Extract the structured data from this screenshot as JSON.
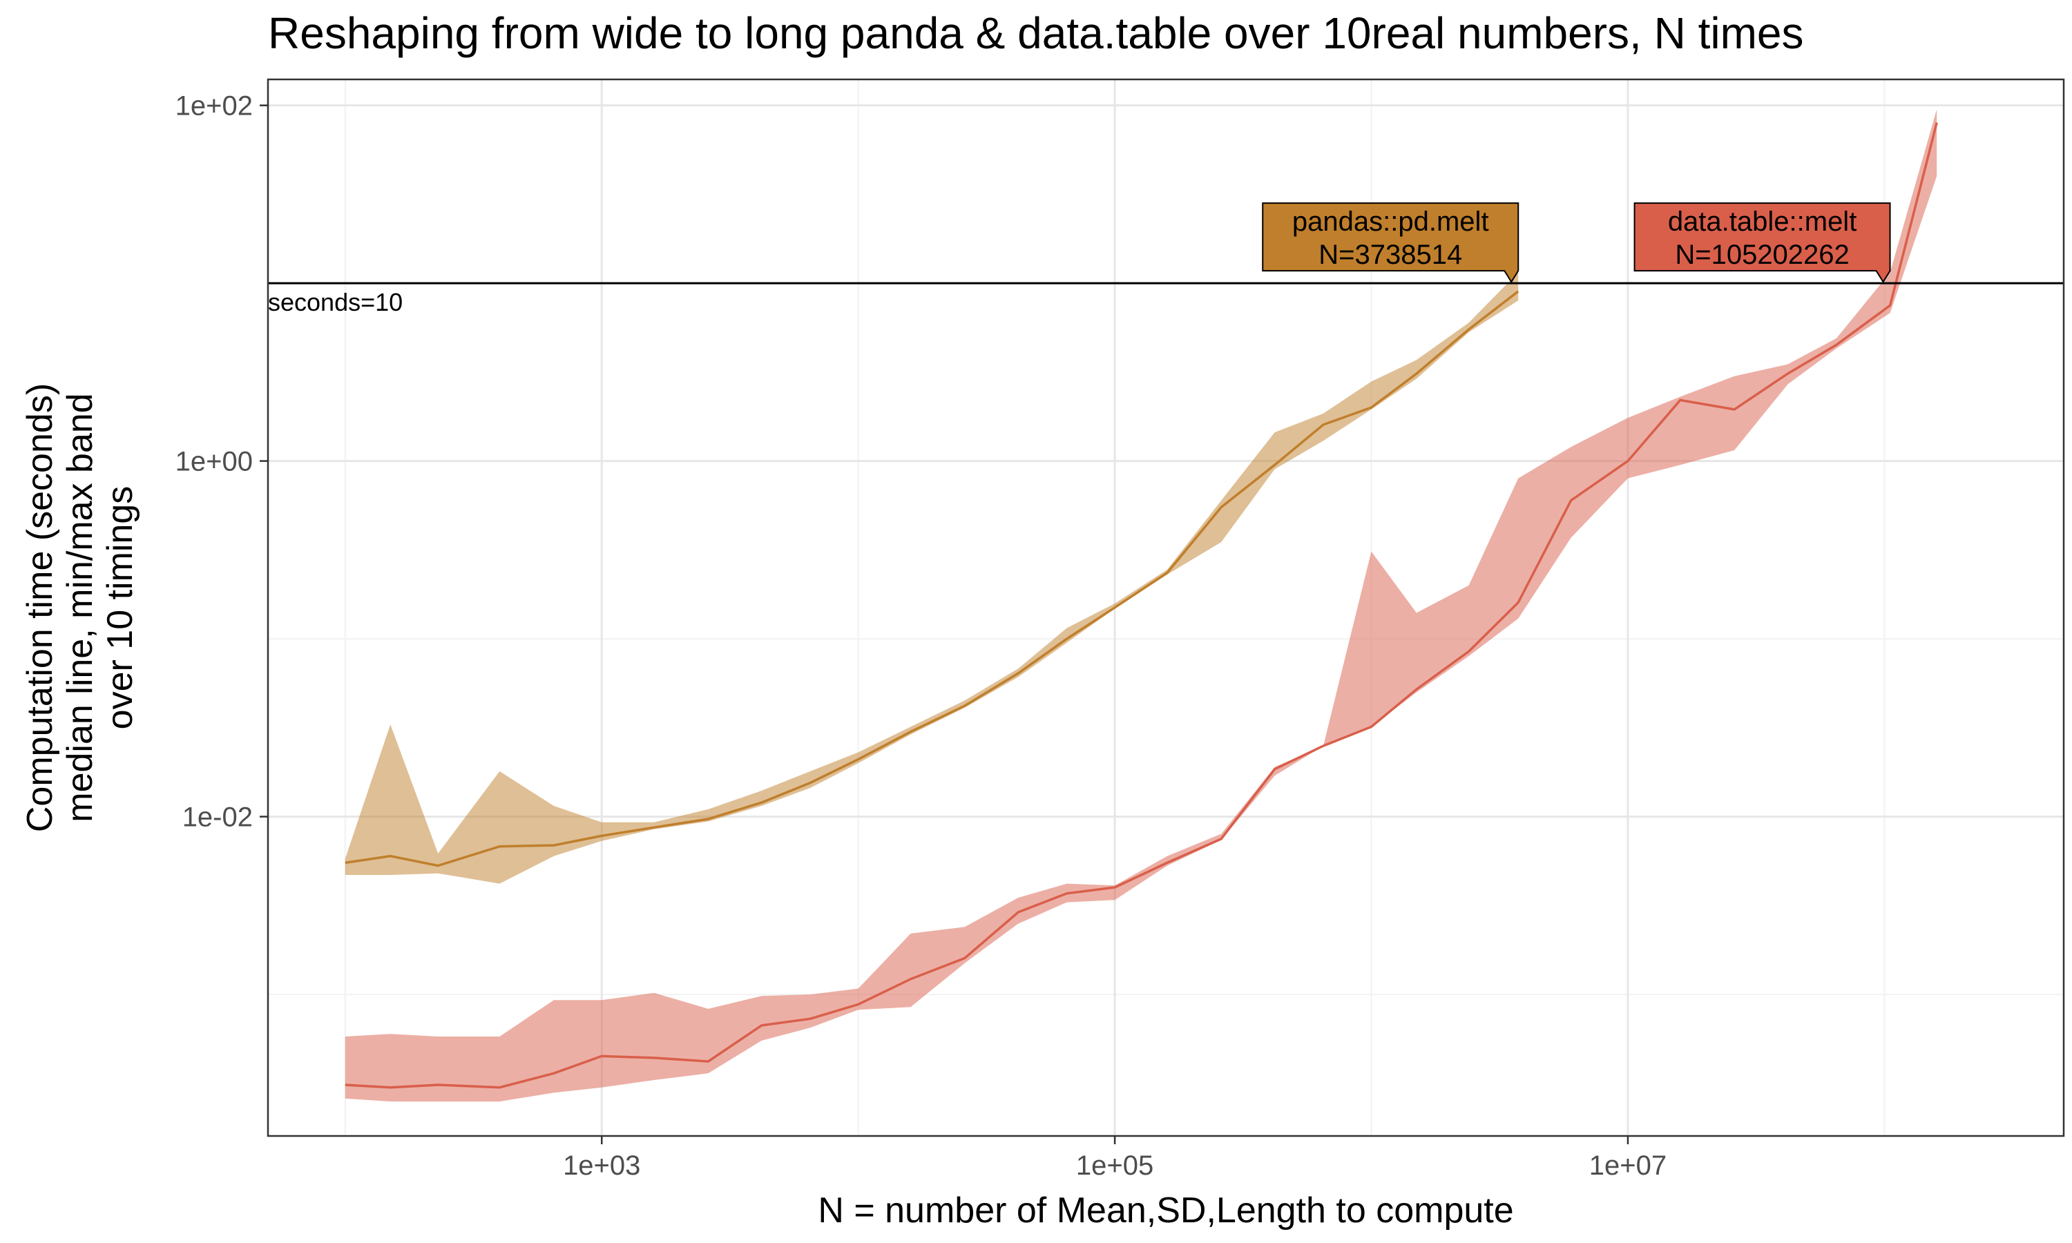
{
  "chart_data": {
    "type": "line",
    "title": "Reshaping from wide to long panda & data.table over 10real numbers, N times",
    "xlabel": "N = number of Mean,SD,Length to compute",
    "ylabel_lines": [
      "Computation time (seconds)",
      "median line, min/max band",
      "over 10 timings"
    ],
    "x_scale": "log10",
    "y_scale": "log10",
    "xlim": [
      50,
      500000000
    ],
    "ylim": [
      0.00016,
      140
    ],
    "x_ticks": [
      {
        "value": 1000,
        "label": "1e+03"
      },
      {
        "value": 100000,
        "label": "1e+05"
      },
      {
        "value": 10000000,
        "label": "1e+07"
      }
    ],
    "y_ticks": [
      {
        "value": 0.01,
        "label": "1e-02"
      },
      {
        "value": 1,
        "label": "1e+00"
      },
      {
        "value": 100,
        "label": "1e+02"
      }
    ],
    "grid": true,
    "reference_line": {
      "y": 10,
      "label": "seconds=10"
    },
    "series": [
      {
        "name": "pandas::pd.melt",
        "color": "#C07F2C",
        "band_color": "#C07F2C",
        "label_text": "N=3738514",
        "label_x": 3738514,
        "points": [
          {
            "x": 100,
            "median": 0.0055,
            "min": 0.0047,
            "max": 0.0058
          },
          {
            "x": 150,
            "median": 0.006,
            "min": 0.0047,
            "max": 0.033
          },
          {
            "x": 230,
            "median": 0.0053,
            "min": 0.0048,
            "max": 0.0062
          },
          {
            "x": 400,
            "median": 0.0068,
            "min": 0.0042,
            "max": 0.018
          },
          {
            "x": 650,
            "median": 0.0069,
            "min": 0.006,
            "max": 0.0115
          },
          {
            "x": 1000,
            "median": 0.0078,
            "min": 0.0073,
            "max": 0.0093
          },
          {
            "x": 1600,
            "median": 0.0087,
            "min": 0.0085,
            "max": 0.0093
          },
          {
            "x": 2600,
            "median": 0.0097,
            "min": 0.0094,
            "max": 0.011
          },
          {
            "x": 4200,
            "median": 0.012,
            "min": 0.0115,
            "max": 0.014
          },
          {
            "x": 6500,
            "median": 0.0155,
            "min": 0.0145,
            "max": 0.018
          },
          {
            "x": 10000,
            "median": 0.021,
            "min": 0.02,
            "max": 0.023
          },
          {
            "x": 16000,
            "median": 0.03,
            "min": 0.029,
            "max": 0.032
          },
          {
            "x": 26000,
            "median": 0.042,
            "min": 0.041,
            "max": 0.045
          },
          {
            "x": 42000,
            "median": 0.064,
            "min": 0.061,
            "max": 0.068
          },
          {
            "x": 65000,
            "median": 0.1,
            "min": 0.095,
            "max": 0.115
          },
          {
            "x": 100000,
            "median": 0.15,
            "min": 0.148,
            "max": 0.158
          },
          {
            "x": 160000,
            "median": 0.235,
            "min": 0.23,
            "max": 0.245
          },
          {
            "x": 260000,
            "median": 0.55,
            "min": 0.35,
            "max": 0.6
          },
          {
            "x": 420000,
            "median": 0.95,
            "min": 0.9,
            "max": 1.45
          },
          {
            "x": 650000,
            "median": 1.6,
            "min": 1.3,
            "max": 1.85
          },
          {
            "x": 1000000,
            "median": 2.0,
            "min": 1.95,
            "max": 2.8
          },
          {
            "x": 1500000,
            "median": 3.1,
            "min": 2.9,
            "max": 3.7
          },
          {
            "x": 2400000,
            "median": 5.5,
            "min": 5.3,
            "max": 6.0
          },
          {
            "x": 3738514,
            "median": 9.0,
            "min": 8.0,
            "max": 11.5
          }
        ]
      },
      {
        "name": "data.table::melt",
        "color": "#D95F4B",
        "band_color": "#D95F4B",
        "label_text": "N=105202262",
        "label_x": 105202262,
        "points": [
          {
            "x": 100,
            "median": 0.00031,
            "min": 0.00026,
            "max": 0.00058
          },
          {
            "x": 150,
            "median": 0.0003,
            "min": 0.00025,
            "max": 0.0006
          },
          {
            "x": 230,
            "median": 0.00031,
            "min": 0.00025,
            "max": 0.00058
          },
          {
            "x": 400,
            "median": 0.0003,
            "min": 0.00025,
            "max": 0.00058
          },
          {
            "x": 650,
            "median": 0.00036,
            "min": 0.00028,
            "max": 0.00093
          },
          {
            "x": 1000,
            "median": 0.00045,
            "min": 0.0003,
            "max": 0.00093
          },
          {
            "x": 1600,
            "median": 0.00044,
            "min": 0.00033,
            "max": 0.00102
          },
          {
            "x": 2600,
            "median": 0.00042,
            "min": 0.00036,
            "max": 0.00083
          },
          {
            "x": 4200,
            "median": 0.00067,
            "min": 0.00055,
            "max": 0.00098
          },
          {
            "x": 6500,
            "median": 0.00073,
            "min": 0.00065,
            "max": 0.001
          },
          {
            "x": 10000,
            "median": 0.00088,
            "min": 0.00082,
            "max": 0.00108
          },
          {
            "x": 16000,
            "median": 0.00122,
            "min": 0.00085,
            "max": 0.0022
          },
          {
            "x": 26000,
            "median": 0.0016,
            "min": 0.0015,
            "max": 0.0024
          },
          {
            "x": 42000,
            "median": 0.0029,
            "min": 0.0025,
            "max": 0.0035
          },
          {
            "x": 65000,
            "median": 0.0037,
            "min": 0.0033,
            "max": 0.0042
          },
          {
            "x": 100000,
            "median": 0.004,
            "min": 0.0034,
            "max": 0.0041
          },
          {
            "x": 160000,
            "median": 0.0055,
            "min": 0.0053,
            "max": 0.006
          },
          {
            "x": 260000,
            "median": 0.0075,
            "min": 0.0074,
            "max": 0.008
          },
          {
            "x": 420000,
            "median": 0.0185,
            "min": 0.017,
            "max": 0.019
          },
          {
            "x": 650000,
            "median": 0.025,
            "min": 0.025,
            "max": 0.025
          },
          {
            "x": 1000000,
            "median": 0.032,
            "min": 0.032,
            "max": 0.31
          },
          {
            "x": 1500000,
            "median": 0.052,
            "min": 0.05,
            "max": 0.14
          },
          {
            "x": 2400000,
            "median": 0.085,
            "min": 0.08,
            "max": 0.2
          },
          {
            "x": 3738514,
            "median": 0.16,
            "min": 0.13,
            "max": 0.8
          },
          {
            "x": 6000000,
            "median": 0.6,
            "min": 0.37,
            "max": 1.2
          },
          {
            "x": 10000000,
            "median": 1.0,
            "min": 0.8,
            "max": 1.75
          },
          {
            "x": 16000000,
            "median": 2.2,
            "min": 0.95,
            "max": 2.3
          },
          {
            "x": 26000000,
            "median": 1.95,
            "min": 1.15,
            "max": 3.0
          },
          {
            "x": 42000000,
            "median": 3.1,
            "min": 2.7,
            "max": 3.5
          },
          {
            "x": 65000000,
            "median": 4.5,
            "min": 4.3,
            "max": 4.9
          },
          {
            "x": 105202262,
            "median": 7.5,
            "min": 6.8,
            "max": 11.5
          },
          {
            "x": 160000000,
            "median": 80,
            "min": 40,
            "max": 95
          }
        ]
      }
    ]
  }
}
